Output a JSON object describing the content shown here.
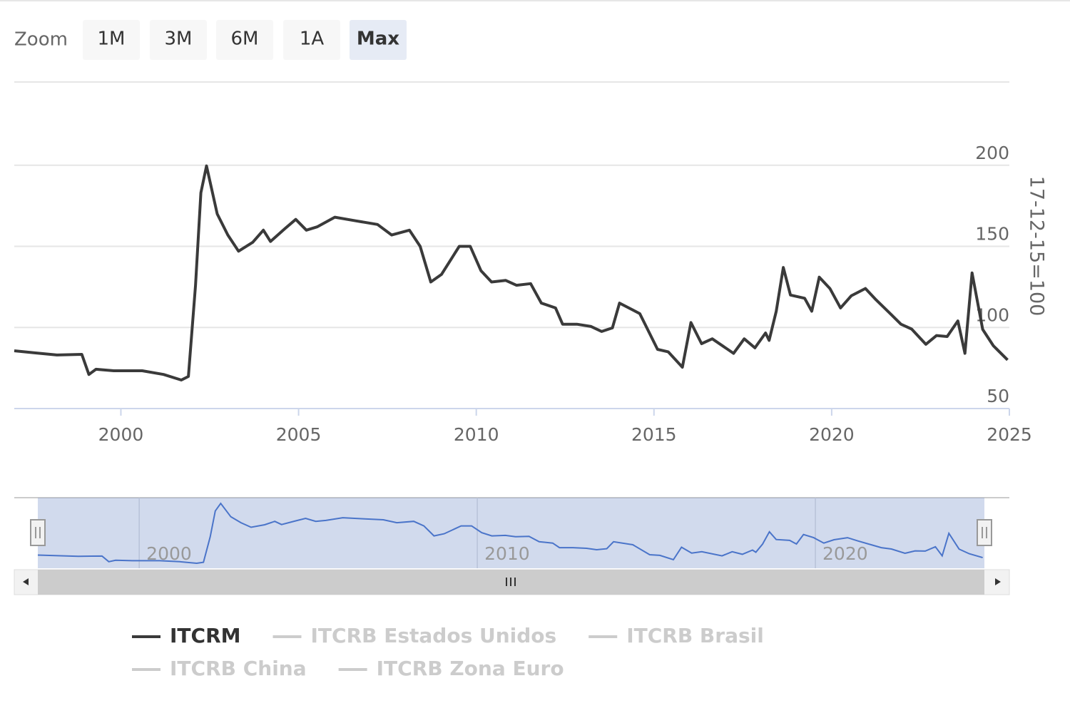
{
  "chart_data": {
    "type": "line",
    "zoom_label": "Zoom",
    "zoom_buttons": [
      "1M",
      "3M",
      "6M",
      "1A",
      "Max"
    ],
    "zoom_selected": 4,
    "y_axis_label": "17-12-15=100",
    "xlim": [
      1997.0,
      2025.0
    ],
    "xticks": [
      2000,
      2005,
      2010,
      2015,
      2020,
      2025
    ],
    "ylim": [
      50,
      250
    ],
    "yticks": [
      50,
      100,
      150,
      200
    ],
    "navigator_xticks": [
      2000,
      2010,
      2020
    ],
    "grid": true,
    "x": [
      1997.0,
      1997.6,
      1998.2,
      1998.9,
      1999.1,
      1999.3,
      1999.8,
      2000.6,
      2001.2,
      2001.7,
      2001.9,
      2002.1,
      2002.25,
      2002.41,
      2002.71,
      2003.01,
      2003.31,
      2003.71,
      2004.01,
      2004.21,
      2004.62,
      2004.92,
      2005.22,
      2005.52,
      2006.02,
      2006.62,
      2007.22,
      2007.62,
      2008.12,
      2008.42,
      2008.72,
      2009.02,
      2009.52,
      2009.83,
      2010.13,
      2010.43,
      2010.83,
      2011.13,
      2011.53,
      2011.83,
      2012.23,
      2012.43,
      2012.83,
      2013.23,
      2013.53,
      2013.83,
      2014.03,
      2014.6,
      2015.1,
      2015.4,
      2015.8,
      2016.04,
      2016.34,
      2016.64,
      2017.24,
      2017.54,
      2017.84,
      2018.14,
      2018.24,
      2018.44,
      2018.64,
      2018.84,
      2019.24,
      2019.44,
      2019.65,
      2019.95,
      2020.25,
      2020.55,
      2020.95,
      2021.25,
      2021.65,
      2021.95,
      2022.25,
      2022.65,
      2022.95,
      2023.25,
      2023.55,
      2023.75,
      2023.95,
      2024.25,
      2024.55,
      2024.95
    ],
    "series": [
      {
        "name": "ITCRM",
        "color": "#3a3a3a",
        "visible": true,
        "values": [
          85.6,
          84.3,
          83,
          83.4,
          71,
          74.2,
          73.3,
          73.3,
          71,
          67.6,
          69.8,
          126,
          183,
          199.6,
          170,
          157,
          147,
          152.5,
          160,
          153,
          161,
          166.6,
          160,
          162,
          168,
          165.7,
          163.5,
          157,
          160,
          150,
          128,
          132.7,
          150,
          150,
          135,
          128,
          129,
          126,
          127,
          115,
          112,
          102,
          102,
          100.6,
          97.5,
          99.7,
          115,
          108.5,
          86.5,
          85,
          75.5,
          103,
          90,
          93,
          84,
          93,
          87.4,
          96.6,
          92,
          110,
          137,
          120,
          118,
          110,
          131,
          124,
          112,
          119.5,
          124,
          117,
          108.5,
          102,
          99,
          89.6,
          95,
          94.4,
          104,
          84,
          133.6,
          98.8,
          88.7,
          80
        ]
      },
      {
        "name": "ITCRB Estados Unidos",
        "visible": false
      },
      {
        "name": "ITCRB Brasil",
        "visible": false
      },
      {
        "name": "ITCRB China",
        "visible": false
      },
      {
        "name": "ITCRB Zona Euro",
        "visible": false
      }
    ]
  }
}
